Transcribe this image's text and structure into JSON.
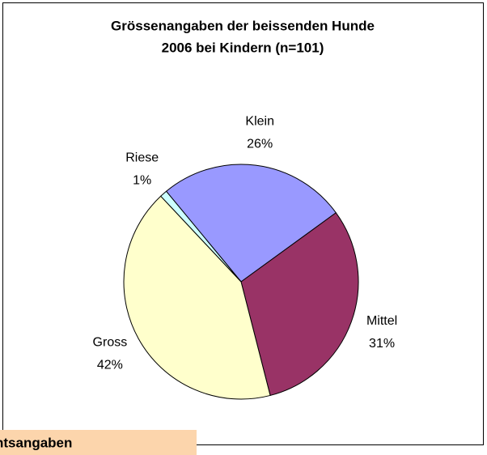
{
  "chart_data": {
    "type": "pie",
    "title": [
      "Grössenangaben der beissenden Hunde",
      "2006 bei Kindern (n=101)"
    ],
    "categories": [
      "Klein",
      "Mittel",
      "Gross",
      "Riese"
    ],
    "values": [
      26,
      31,
      42,
      1
    ],
    "value_labels": [
      "26%",
      "31%",
      "42%",
      "1%"
    ],
    "colors": [
      "#9999ff",
      "#993366",
      "#ffffcc",
      "#ccffff"
    ]
  },
  "footer_tab": "ntsangaben"
}
